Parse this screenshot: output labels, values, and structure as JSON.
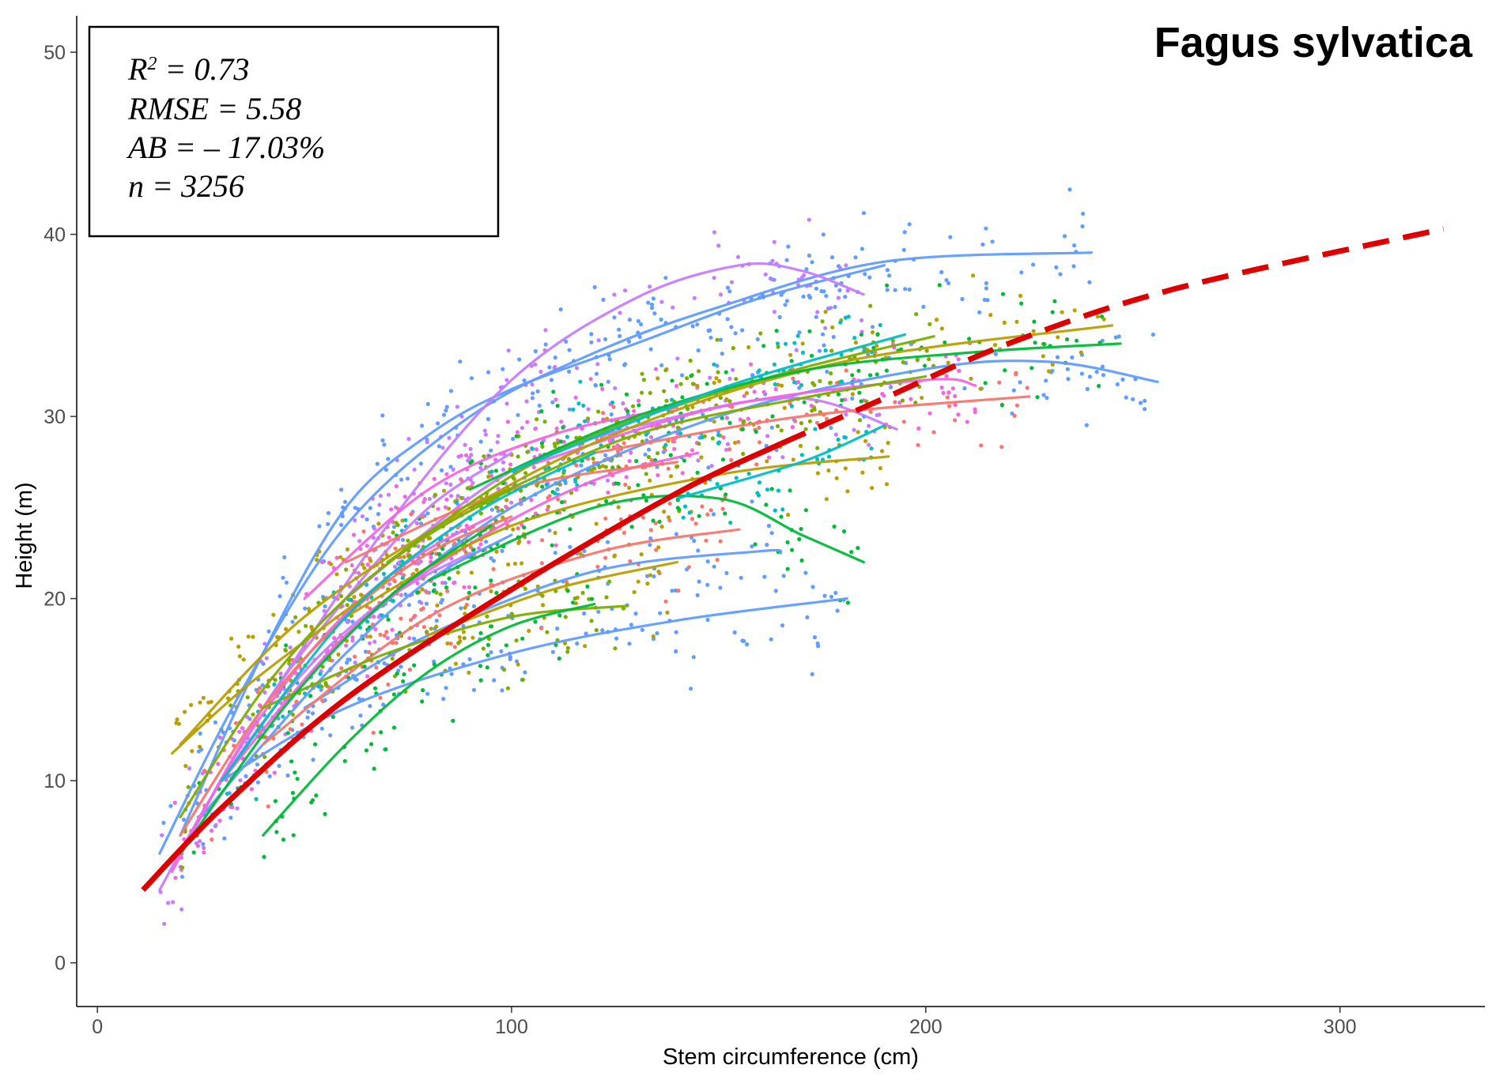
{
  "chart_data": {
    "type": "scatter",
    "title": "Fagus sylvatica",
    "xlabel": "Stem circumference (cm)",
    "ylabel": "Height (m)",
    "xlim": [
      -5,
      335
    ],
    "ylim": [
      -2.4,
      52
    ],
    "xticks": [
      0,
      100,
      200,
      300
    ],
    "yticks": [
      0,
      10,
      20,
      30,
      40,
      50
    ],
    "grid": false,
    "legend": "none",
    "annotation_box": {
      "r2_label": "R",
      "r2_sup": "2",
      "r2_value": " = 0.73",
      "rmse": "RMSE = 5.58",
      "ab": "AB = – 17.03%",
      "n": "n = 3256"
    },
    "global_fit": {
      "color": "#dd0000",
      "style": "solid to x=165, dashed beyond",
      "points": [
        [
          11,
          4
        ],
        [
          30,
          8.5
        ],
        [
          60,
          14.5
        ],
        [
          100,
          20.5
        ],
        [
          140,
          25.8
        ],
        [
          165,
          28.5
        ],
        [
          190,
          31
        ],
        [
          220,
          34
        ],
        [
          260,
          37
        ],
        [
          325,
          40.3
        ]
      ]
    },
    "series": [
      {
        "color": "#619cff",
        "points": [
          [
            15,
            6
          ],
          [
            35,
            15
          ],
          [
            60,
            24
          ],
          [
            90,
            30
          ],
          [
            120,
            33.5
          ],
          [
            150,
            36
          ],
          [
            190,
            38.5
          ],
          [
            240,
            39
          ]
        ]
      },
      {
        "color": "#619cff",
        "points": [
          [
            20,
            7
          ],
          [
            40,
            17
          ],
          [
            60,
            25
          ],
          [
            80,
            29
          ],
          [
            100,
            31.5
          ],
          [
            130,
            34
          ],
          [
            160,
            36.5
          ],
          [
            190,
            38.3
          ]
        ]
      },
      {
        "color": "#619cff",
        "points": [
          [
            30,
            10
          ],
          [
            60,
            14
          ],
          [
            100,
            17
          ],
          [
            140,
            18.8
          ],
          [
            181,
            20
          ]
        ]
      },
      {
        "color": "#619cff",
        "points": [
          [
            50,
            14
          ],
          [
            80,
            18
          ],
          [
            120,
            21.5
          ],
          [
            160,
            22.6
          ],
          [
            165,
            22.5
          ]
        ]
      },
      {
        "color": "#619cff",
        "points": [
          [
            60,
            18
          ],
          [
            100,
            25
          ],
          [
            150,
            30
          ],
          [
            200,
            32.6
          ],
          [
            230,
            33
          ],
          [
            256,
            31.9
          ]
        ]
      },
      {
        "color": "#619cff",
        "points": [
          [
            25,
            8
          ],
          [
            40,
            12
          ],
          [
            60,
            17
          ],
          [
            80,
            21
          ],
          [
            100,
            23.5
          ]
        ]
      },
      {
        "color": "#c77cff",
        "points": [
          [
            40,
            14
          ],
          [
            70,
            24
          ],
          [
            100,
            32
          ],
          [
            130,
            36.5
          ],
          [
            155,
            38.3
          ],
          [
            170,
            38
          ],
          [
            185,
            36.7
          ]
        ]
      },
      {
        "color": "#c77cff",
        "points": [
          [
            20,
            6
          ],
          [
            40,
            14
          ],
          [
            60,
            20
          ],
          [
            80,
            25
          ],
          [
            100,
            28
          ]
        ]
      },
      {
        "color": "#c77cff",
        "points": [
          [
            60,
            20
          ],
          [
            100,
            27
          ],
          [
            140,
            30
          ],
          [
            170,
            31
          ],
          [
            193,
            29.3
          ]
        ]
      },
      {
        "color": "#c77cff",
        "points": [
          [
            15,
            4
          ],
          [
            30,
            10
          ],
          [
            50,
            16
          ],
          [
            70,
            20
          ],
          [
            90,
            22.5
          ]
        ]
      },
      {
        "color": "#f564e3",
        "points": [
          [
            50,
            20
          ],
          [
            80,
            26
          ],
          [
            110,
            29
          ],
          [
            140,
            30.5
          ]
        ]
      },
      {
        "color": "#f564e3",
        "points": [
          [
            100,
            27
          ],
          [
            150,
            30.5
          ],
          [
            200,
            32
          ],
          [
            212,
            31.7
          ]
        ]
      },
      {
        "color": "#f564e3",
        "points": [
          [
            18,
            5
          ],
          [
            35,
            12
          ],
          [
            55,
            18
          ],
          [
            75,
            22
          ],
          [
            95,
            24.5
          ]
        ]
      },
      {
        "color": "#f564e3",
        "points": [
          [
            30,
            10
          ],
          [
            60,
            18
          ],
          [
            90,
            23
          ],
          [
            120,
            26.5
          ],
          [
            145,
            28
          ]
        ]
      },
      {
        "color": "#f8766d",
        "points": [
          [
            40,
            12
          ],
          [
            80,
            19
          ],
          [
            120,
            22.5
          ],
          [
            155,
            23.8
          ]
        ]
      },
      {
        "color": "#f8766d",
        "points": [
          [
            120,
            28
          ],
          [
            170,
            30
          ],
          [
            225,
            31.1
          ]
        ]
      },
      {
        "color": "#f8766d",
        "points": [
          [
            20,
            7
          ],
          [
            40,
            14
          ],
          [
            60,
            19
          ],
          [
            80,
            22.5
          ],
          [
            100,
            24.5
          ]
        ]
      },
      {
        "color": "#f8766d",
        "points": [
          [
            60,
            22
          ],
          [
            100,
            26
          ],
          [
            140,
            27.5
          ]
        ]
      },
      {
        "color": "#b79f00",
        "points": [
          [
            20,
            12
          ],
          [
            50,
            19
          ],
          [
            90,
            25
          ],
          [
            130,
            29.5
          ],
          [
            180,
            33
          ],
          [
            245,
            35
          ]
        ]
      },
      {
        "color": "#b79f00",
        "points": [
          [
            60,
            19
          ],
          [
            100,
            24
          ],
          [
            150,
            26.8
          ],
          [
            191,
            27.8
          ]
        ]
      },
      {
        "color": "#b79f00",
        "points": [
          [
            18,
            11.5
          ],
          [
            35,
            15
          ],
          [
            55,
            18.5
          ],
          [
            70,
            21
          ]
        ]
      },
      {
        "color": "#b79f00",
        "points": [
          [
            80,
            18
          ],
          [
            110,
            20.5
          ],
          [
            140,
            22
          ]
        ]
      },
      {
        "color": "#7cae00",
        "points": [
          [
            70,
            22
          ],
          [
            110,
            28
          ],
          [
            160,
            32
          ],
          [
            202,
            34.4
          ]
        ]
      },
      {
        "color": "#7cae00",
        "points": [
          [
            40,
            14
          ],
          [
            70,
            17
          ],
          [
            100,
            19
          ],
          [
            128,
            19.6
          ]
        ]
      },
      {
        "color": "#7cae00",
        "points": [
          [
            20,
            8
          ],
          [
            40,
            15
          ],
          [
            60,
            20
          ],
          [
            80,
            23.5
          ],
          [
            100,
            26
          ]
        ]
      },
      {
        "color": "#7cae00",
        "points": [
          [
            90,
            25
          ],
          [
            130,
            29
          ],
          [
            170,
            31
          ],
          [
            200,
            32.2
          ]
        ]
      },
      {
        "color": "#00ba38",
        "points": [
          [
            40,
            7
          ],
          [
            60,
            12
          ],
          [
            80,
            16
          ],
          [
            100,
            18.5
          ],
          [
            120,
            19.7
          ]
        ]
      },
      {
        "color": "#00ba38",
        "points": [
          [
            90,
            26
          ],
          [
            130,
            30
          ],
          [
            170,
            32.5
          ],
          [
            210,
            33.5
          ],
          [
            247,
            34
          ]
        ]
      },
      {
        "color": "#00ba38",
        "points": [
          [
            80,
            21
          ],
          [
            120,
            25
          ],
          [
            150,
            25.5
          ],
          [
            170,
            23.5
          ],
          [
            185,
            22
          ]
        ]
      },
      {
        "color": "#00ba38",
        "points": [
          [
            20,
            6
          ],
          [
            45,
            14
          ],
          [
            70,
            20
          ],
          [
            95,
            24
          ]
        ]
      },
      {
        "color": "#00bfc4",
        "points": [
          [
            100,
            27
          ],
          [
            150,
            31.5
          ],
          [
            195,
            34.5
          ]
        ]
      },
      {
        "color": "#00bfc4",
        "points": [
          [
            140,
            25.5
          ],
          [
            170,
            27.5
          ],
          [
            190,
            29.5
          ]
        ]
      },
      {
        "color": "#00bfc4",
        "points": [
          [
            30,
            10
          ],
          [
            60,
            19
          ],
          [
            90,
            24.5
          ],
          [
            120,
            28
          ]
        ]
      }
    ],
    "scatter_colors": [
      "#619cff",
      "#c77cff",
      "#f564e3",
      "#f8766d",
      "#b79f00",
      "#7cae00",
      "#00ba38",
      "#00bfc4"
    ]
  }
}
